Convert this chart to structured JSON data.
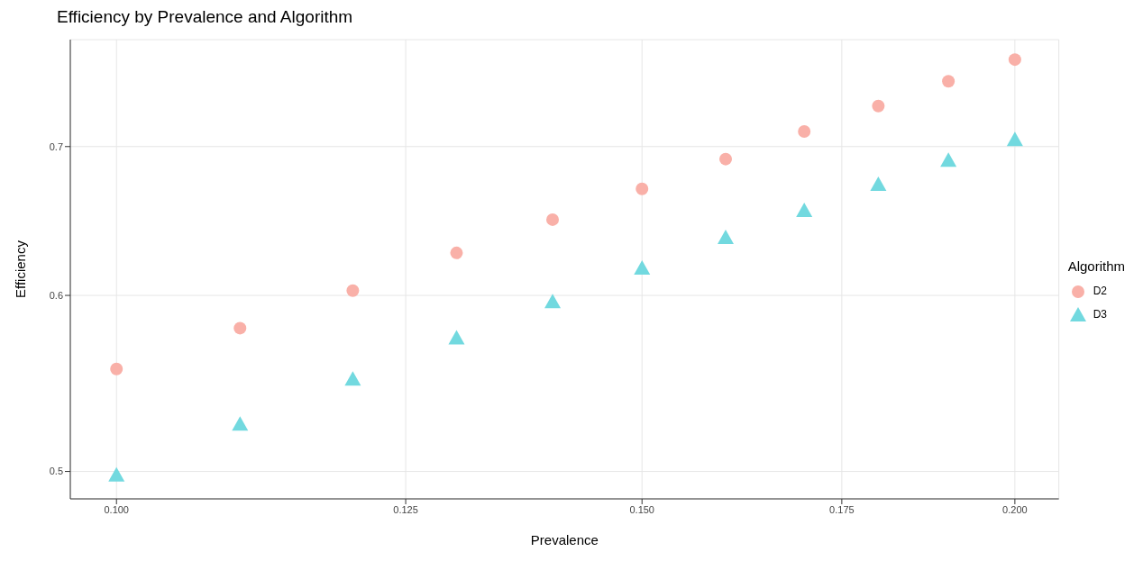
{
  "chart_data": {
    "type": "scatter",
    "title": "Efficiency by Prevalence and Algorithm",
    "xlabel": "Prevalence",
    "ylabel": "Efficiency",
    "legend_title": "Algorithm",
    "log": "xy",
    "grid": true,
    "legend": "right",
    "x": [
      0.1,
      0.11,
      0.12,
      0.13,
      0.14,
      0.15,
      0.16,
      0.17,
      0.18,
      0.19,
      0.2
    ],
    "xlim": [
      0.0965,
      0.2069
    ],
    "ylim": [
      0.486,
      0.782
    ],
    "xticks": [
      {
        "value": 0.1,
        "label": "0.100"
      },
      {
        "value": 0.125,
        "label": "0.125"
      },
      {
        "value": 0.15,
        "label": "0.150"
      },
      {
        "value": 0.175,
        "label": "0.175"
      },
      {
        "value": 0.2,
        "label": "0.200"
      }
    ],
    "yticks": [
      0.5,
      0.6,
      0.7
    ],
    "series": [
      {
        "name": "D2",
        "color": "#f9b0a8",
        "marker": "circle",
        "values": [
          0.556,
          0.58,
          0.603,
          0.627,
          0.649,
          0.67,
          0.691,
          0.711,
          0.73,
          0.749,
          0.766
        ]
      },
      {
        "name": "D3",
        "color": "#72d9df",
        "marker": "triangle",
        "values": [
          0.498,
          0.525,
          0.55,
          0.574,
          0.596,
          0.617,
          0.637,
          0.655,
          0.673,
          0.69,
          0.705
        ]
      }
    ]
  }
}
